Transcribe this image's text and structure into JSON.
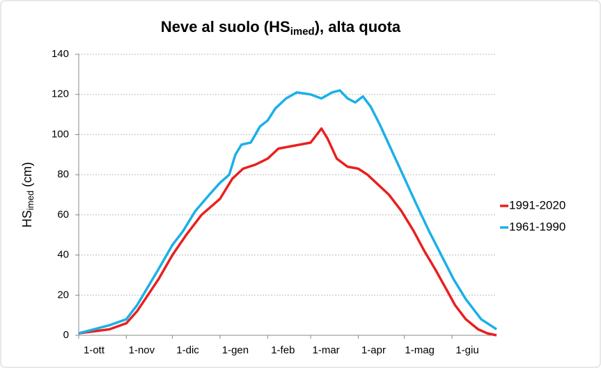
{
  "chart_data": {
    "type": "line",
    "title": {
      "text": "Neve al suolo (HS",
      "subscript": "imed",
      "rest": "), alta quota"
    },
    "y_label": {
      "text": "HS",
      "subscript": "imed",
      "rest": " (cm)"
    },
    "xlim": [
      0,
      272
    ],
    "xticks": [
      {
        "value": 0,
        "label": "1-ott"
      },
      {
        "value": 31,
        "label": "1-nov"
      },
      {
        "value": 61,
        "label": "1-dic"
      },
      {
        "value": 92,
        "label": "1-gen"
      },
      {
        "value": 123,
        "label": "1-feb"
      },
      {
        "value": 151,
        "label": "1-mar"
      },
      {
        "value": 182,
        "label": "1-apr"
      },
      {
        "value": 212,
        "label": "1-mag"
      },
      {
        "value": 243,
        "label": "1-giu"
      }
    ],
    "ylim": [
      0,
      140
    ],
    "yticks": [
      0,
      20,
      40,
      60,
      80,
      100,
      120,
      140
    ],
    "grid": true,
    "legend": "right",
    "series": [
      {
        "name": "1991-2020",
        "color": "#e8201f",
        "x": [
          0,
          10,
          20,
          31,
          38,
          45,
          52,
          61,
          70,
          80,
          92,
          100,
          107,
          115,
          123,
          130,
          137,
          144,
          151,
          155,
          158,
          162,
          168,
          175,
          182,
          188,
          195,
          202,
          210,
          218,
          225,
          232,
          240,
          245,
          252,
          260,
          266,
          272
        ],
        "values": [
          1,
          2,
          3,
          6,
          12,
          20,
          28,
          40,
          50,
          60,
          68,
          78,
          83,
          85,
          88,
          93,
          94,
          95,
          96,
          100,
          103,
          98,
          88,
          84,
          83,
          80,
          75,
          70,
          62,
          52,
          42,
          33,
          22,
          15,
          8,
          3,
          1,
          0
        ]
      },
      {
        "name": "1961-1990",
        "color": "#1ab0e8",
        "x": [
          0,
          10,
          20,
          31,
          38,
          45,
          52,
          61,
          68,
          76,
          85,
          92,
          98,
          102,
          106,
          112,
          118,
          123,
          128,
          135,
          142,
          151,
          158,
          165,
          170,
          175,
          180,
          185,
          190,
          196,
          202,
          208,
          214,
          220,
          228,
          236,
          244,
          252,
          262,
          272
        ],
        "values": [
          1,
          3,
          5,
          8,
          15,
          24,
          33,
          45,
          52,
          62,
          70,
          76,
          80,
          90,
          95,
          96,
          104,
          107,
          113,
          118,
          121,
          120,
          118,
          121,
          122,
          118,
          116,
          119,
          114,
          105,
          95,
          85,
          75,
          65,
          52,
          40,
          28,
          18,
          8,
          3
        ]
      }
    ]
  }
}
